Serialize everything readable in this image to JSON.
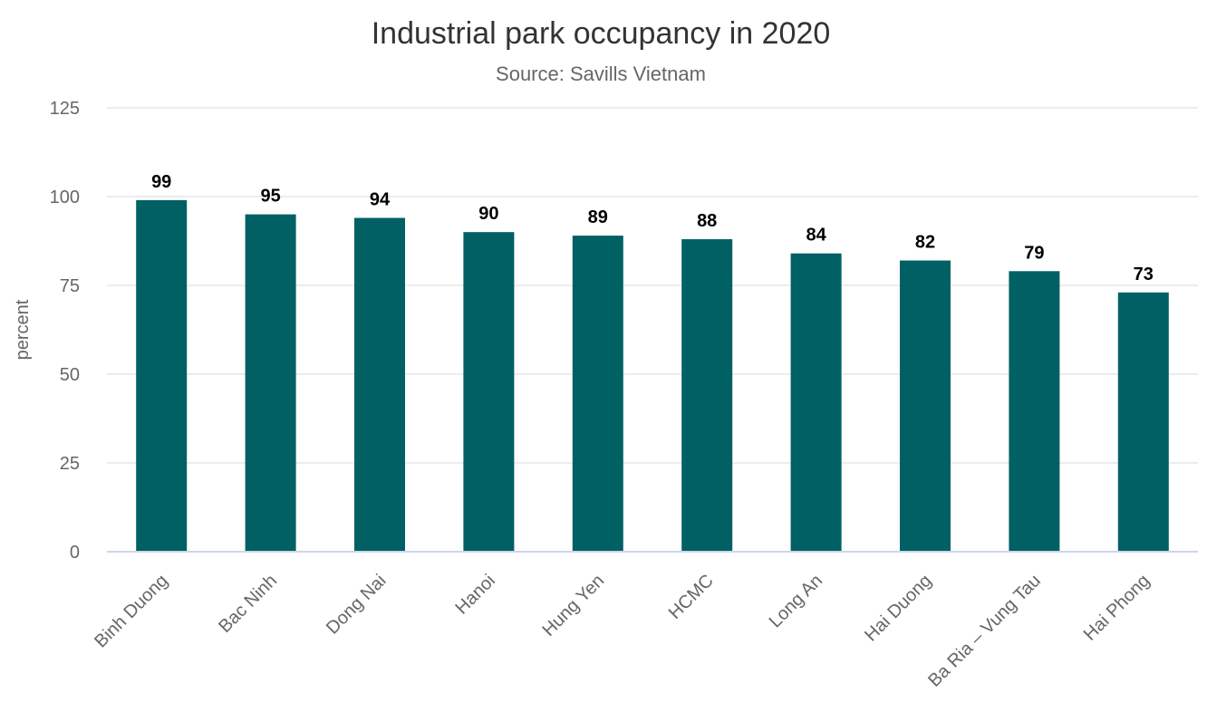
{
  "chart_data": {
    "type": "bar",
    "title": "Industrial park occupancy in 2020",
    "subtitle": "Source: Savills Vietnam",
    "xlabel": "",
    "ylabel": "percent",
    "ylim": [
      0,
      125
    ],
    "yticks": [
      0,
      25,
      50,
      75,
      100,
      125
    ],
    "grid": true,
    "legend": "none",
    "categories": [
      "Binh Duong",
      "Bac Ninh",
      "Dong Nai",
      "Hanoi",
      "Hung Yen",
      "HCMC",
      "Long An",
      "Hai Duong",
      "Ba Ria – Vung Tau",
      "Hai Phong"
    ],
    "values": [
      99,
      95,
      94,
      90,
      89,
      88,
      84,
      82,
      79,
      73
    ],
    "bar_color": "#006064",
    "grid_color": "#e6e6e6",
    "axis_color": "#ccd6eb"
  }
}
